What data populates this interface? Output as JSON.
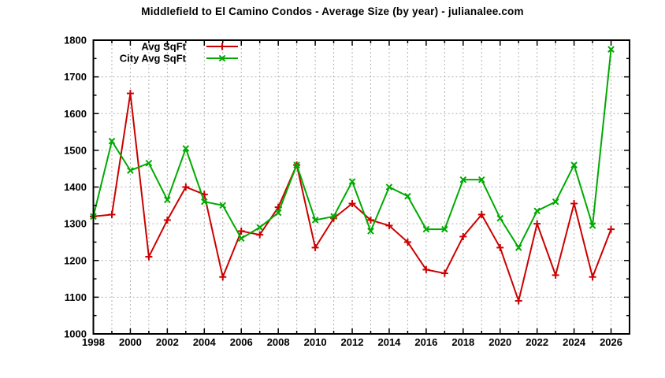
{
  "title": "Middlefield to El Camino Condos - Average Size (by year) - julianalee.com",
  "chart_data": {
    "type": "line",
    "title": "Middlefield to El Camino Condos - Average Size (by year) - julianalee.com",
    "x": [
      1998,
      1999,
      2000,
      2001,
      2002,
      2003,
      2004,
      2005,
      2006,
      2007,
      2008,
      2009,
      2010,
      2011,
      2012,
      2013,
      2014,
      2015,
      2016,
      2017,
      2018,
      2019,
      2020,
      2021,
      2022,
      2023,
      2024,
      2025,
      2026
    ],
    "series": [
      {
        "name": "Avg SqFt",
        "color": "#cc0000",
        "marker": "plus",
        "values": [
          1320,
          1325,
          1655,
          1210,
          1310,
          1400,
          1380,
          1155,
          1280,
          1270,
          1345,
          1460,
          1235,
          1315,
          1355,
          1310,
          1295,
          1250,
          1175,
          1165,
          1265,
          1325,
          1235,
          1090,
          1300,
          1160,
          1355,
          1155,
          1285
        ]
      },
      {
        "name": "City Avg SqFt",
        "color": "#00aa00",
        "marker": "cross",
        "values": [
          1320,
          1525,
          1445,
          1465,
          1365,
          1505,
          1360,
          1350,
          1260,
          1290,
          1330,
          1460,
          1310,
          1320,
          1415,
          1280,
          1400,
          1375,
          1285,
          1285,
          1420,
          1420,
          1315,
          1235,
          1335,
          1360,
          1460,
          1295,
          1775
        ]
      }
    ],
    "xlabel": "",
    "ylabel": "",
    "xlim": [
      1998,
      2027
    ],
    "ylim": [
      1000,
      1800
    ],
    "x_tick_step": 2,
    "y_tick_step": 100,
    "x_tick_labels": [
      "1998",
      "2000",
      "2002",
      "2004",
      "2006",
      "2008",
      "2010",
      "2012",
      "2014",
      "2016",
      "2018",
      "2020",
      "2022",
      "2024",
      "2026"
    ],
    "y_tick_labels": [
      "1000",
      "1100",
      "1200",
      "1300",
      "1400",
      "1500",
      "1600",
      "1700",
      "1800"
    ],
    "grid": "dotted-gray, vertical every year, horizontal every 100",
    "legend_position": "top-left-inside"
  }
}
